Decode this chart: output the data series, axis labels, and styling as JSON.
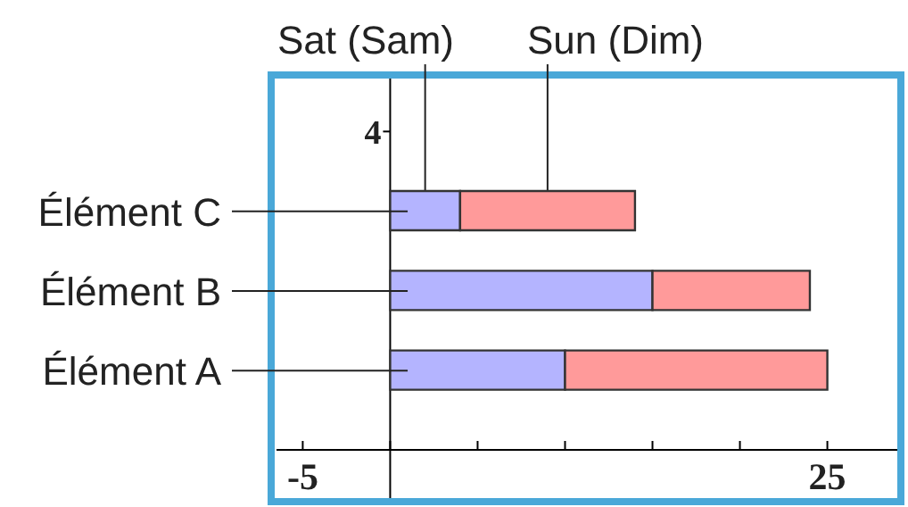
{
  "chart_data": {
    "type": "bar",
    "orientation": "horizontal",
    "stacked": true,
    "categories": [
      "Élément C",
      "Élément B",
      "Élément A"
    ],
    "series": [
      {
        "name": "Sat (Sam)",
        "color": "#b4b4ff",
        "values": [
          4,
          15,
          10
        ]
      },
      {
        "name": "Sun (Dim)",
        "color": "#ff9a9a",
        "values": [
          10,
          9,
          15
        ]
      }
    ],
    "xlim": [
      -6.5,
      29
    ],
    "xticks": [
      -5,
      {
        "value": 0,
        "label": null
      },
      {
        "value": 5,
        "label": null
      },
      {
        "value": 10,
        "label": null
      },
      {
        "value": 15,
        "label": null
      },
      {
        "value": 20,
        "label": null
      },
      25
    ],
    "annotations": [
      "4"
    ]
  }
}
